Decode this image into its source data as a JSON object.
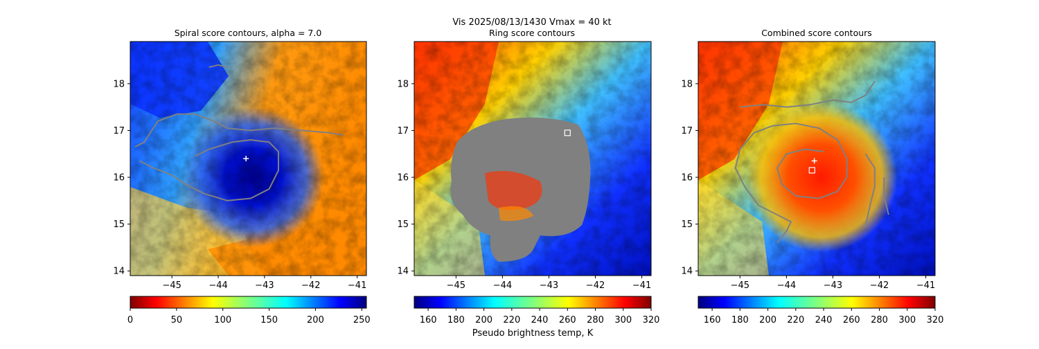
{
  "figure": {
    "suptitle_line1": "Vis  2025/08/13/1430    Vmax = 40 kt"
  },
  "chart_data": [
    {
      "type": "heatmap",
      "title": "Spiral score contours, alpha =  7.0",
      "xlim": [
        -45.9,
        -40.8
      ],
      "ylim": [
        13.9,
        18.9
      ],
      "xticks": [
        -45,
        -44,
        -43,
        -42,
        -41
      ],
      "yticks": [
        14,
        15,
        16,
        17,
        18
      ],
      "colorbar": {
        "cmap": "jet_r",
        "range": [
          0,
          255
        ],
        "ticks": [
          0,
          50,
          100,
          150,
          200,
          250
        ],
        "label": ""
      },
      "markers": [
        {
          "shape": "plus",
          "color": "#ffffff",
          "lon": -43.4,
          "lat": 16.4
        }
      ],
      "contours": [
        [
          [
            -45.8,
            16.65
          ],
          [
            -45.6,
            16.75
          ],
          [
            -45.3,
            17.2
          ],
          [
            -44.9,
            17.35
          ],
          [
            -44.5,
            17.35
          ],
          [
            -44.1,
            17.2
          ],
          [
            -43.8,
            17.05
          ],
          [
            -43.3,
            17.0
          ],
          [
            -42.8,
            17.05
          ],
          [
            -42.2,
            17.0
          ],
          [
            -41.6,
            16.95
          ],
          [
            -41.3,
            16.9
          ]
        ],
        [
          [
            -45.7,
            16.35
          ],
          [
            -45.4,
            16.2
          ],
          [
            -45.0,
            16.05
          ],
          [
            -44.7,
            15.85
          ],
          [
            -44.3,
            15.65
          ],
          [
            -43.8,
            15.5
          ],
          [
            -43.3,
            15.55
          ],
          [
            -42.9,
            15.75
          ],
          [
            -42.7,
            16.15
          ],
          [
            -42.7,
            16.55
          ],
          [
            -42.9,
            16.75
          ],
          [
            -43.3,
            16.8
          ],
          [
            -43.7,
            16.75
          ],
          [
            -44.2,
            16.6
          ],
          [
            -44.5,
            16.45
          ]
        ],
        [
          [
            -44.2,
            18.35
          ],
          [
            -44.0,
            18.4
          ],
          [
            -43.8,
            18.35
          ]
        ]
      ]
    },
    {
      "type": "heatmap",
      "title": "Ring score contours",
      "xlim": [
        -45.9,
        -40.8
      ],
      "ylim": [
        13.9,
        18.9
      ],
      "xticks": [
        -45,
        -44,
        -43,
        -42,
        -41
      ],
      "yticks": [
        14,
        15,
        16,
        17,
        18
      ],
      "colorbar": {
        "cmap": "jet",
        "range": [
          150,
          320
        ],
        "ticks": [
          160,
          180,
          200,
          220,
          240,
          260,
          280,
          300,
          320
        ],
        "label": "Pseudo brightness temp, K"
      },
      "markers": [
        {
          "shape": "square",
          "color": "#ffffff",
          "lon": -42.6,
          "lat": 16.95
        }
      ],
      "contours": []
    },
    {
      "type": "heatmap",
      "title": "Combined score contours",
      "xlim": [
        -45.9,
        -40.8
      ],
      "ylim": [
        13.9,
        18.9
      ],
      "xticks": [
        -45,
        -44,
        -43,
        -42,
        -41
      ],
      "yticks": [
        14,
        15,
        16,
        17,
        18
      ],
      "colorbar": {
        "cmap": "jet",
        "range": [
          150,
          320
        ],
        "ticks": [
          160,
          180,
          200,
          220,
          240,
          260,
          280,
          300,
          320
        ],
        "label": ""
      },
      "markers": [
        {
          "shape": "plus",
          "color": "#ffffff",
          "lon": -43.4,
          "lat": 16.35
        },
        {
          "shape": "square",
          "color": "#ffffff",
          "lon": -43.45,
          "lat": 16.15
        }
      ],
      "contours": [
        [
          [
            -45.0,
            17.5
          ],
          [
            -44.5,
            17.55
          ],
          [
            -44.0,
            17.5
          ],
          [
            -43.5,
            17.55
          ],
          [
            -43.0,
            17.65
          ],
          [
            -42.6,
            17.6
          ],
          [
            -42.3,
            17.75
          ],
          [
            -42.1,
            18.05
          ]
        ],
        [
          [
            -44.2,
            14.6
          ],
          [
            -44.0,
            14.85
          ],
          [
            -43.9,
            15.05
          ],
          [
            -44.2,
            15.2
          ],
          [
            -44.6,
            15.4
          ],
          [
            -44.9,
            15.8
          ],
          [
            -45.1,
            16.2
          ],
          [
            -45.0,
            16.6
          ],
          [
            -44.7,
            16.95
          ],
          [
            -44.3,
            17.1
          ],
          [
            -43.8,
            17.15
          ],
          [
            -43.3,
            17.05
          ],
          [
            -42.9,
            16.8
          ],
          [
            -42.7,
            16.4
          ],
          [
            -42.7,
            16.0
          ],
          [
            -42.9,
            15.7
          ],
          [
            -43.3,
            15.55
          ],
          [
            -43.8,
            15.6
          ],
          [
            -44.1,
            15.85
          ],
          [
            -44.2,
            16.2
          ],
          [
            -44.0,
            16.5
          ],
          [
            -43.6,
            16.6
          ],
          [
            -43.2,
            16.55
          ]
        ],
        [
          [
            -42.3,
            14.95
          ],
          [
            -42.2,
            15.4
          ],
          [
            -42.1,
            15.8
          ],
          [
            -42.1,
            16.2
          ],
          [
            -42.3,
            16.5
          ]
        ],
        [
          [
            -41.8,
            15.2
          ],
          [
            -41.9,
            15.6
          ],
          [
            -41.9,
            16.0
          ]
        ]
      ]
    }
  ]
}
